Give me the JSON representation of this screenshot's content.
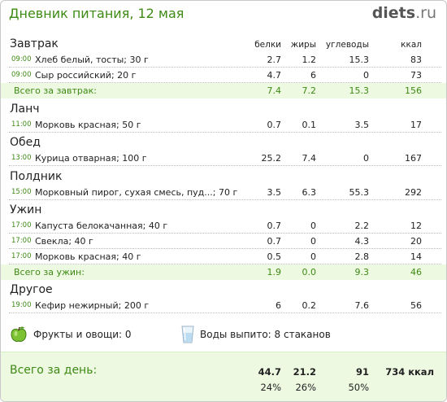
{
  "header": {
    "title": "Дневник питания, 12 мая",
    "logo_main": "diets",
    "logo_tld": ".ru"
  },
  "columns": [
    "белки",
    "жиры",
    "углеводы",
    "ккал"
  ],
  "sections": [
    {
      "title": "Завтрак",
      "rows": [
        {
          "time": "09:00",
          "food": "Хлеб белый, тосты; 30 г",
          "protein": "2.7",
          "fat": "1.2",
          "carbs": "15.3",
          "kcal": "83"
        },
        {
          "time": "09:00",
          "food": "Сыр российский; 20 г",
          "protein": "4.7",
          "fat": "6",
          "carbs": "0",
          "kcal": "73"
        }
      ],
      "subtotal": {
        "label": "Всего за завтрак:",
        "protein": "7.4",
        "fat": "7.2",
        "carbs": "15.3",
        "kcal": "156"
      }
    },
    {
      "title": "Ланч",
      "rows": [
        {
          "time": "11:00",
          "food": "Морковь красная; 50 г",
          "protein": "0.7",
          "fat": "0.1",
          "carbs": "3.5",
          "kcal": "17"
        }
      ]
    },
    {
      "title": "Обед",
      "rows": [
        {
          "time": "13:00",
          "food": "Курица отварная; 100 г",
          "protein": "25.2",
          "fat": "7.4",
          "carbs": "0",
          "kcal": "167"
        }
      ]
    },
    {
      "title": "Полдник",
      "rows": [
        {
          "time": "15:00",
          "food": "Морковный пирог, сухая смесь, пуд...; 70 г",
          "protein": "3.5",
          "fat": "6.3",
          "carbs": "55.3",
          "kcal": "292"
        }
      ]
    },
    {
      "title": "Ужин",
      "rows": [
        {
          "time": "17:00",
          "food": "Капуста белокачанная; 40 г",
          "protein": "0.7",
          "fat": "0",
          "carbs": "2.2",
          "kcal": "12"
        },
        {
          "time": "17:00",
          "food": "Свекла; 40 г",
          "protein": "0.7",
          "fat": "0",
          "carbs": "4.3",
          "kcal": "20"
        },
        {
          "time": "17:00",
          "food": "Морковь красная; 40 г",
          "protein": "0.5",
          "fat": "0",
          "carbs": "2.8",
          "kcal": "14"
        }
      ],
      "subtotal": {
        "label": "Всего за ужин:",
        "protein": "1.9",
        "fat": "0.0",
        "carbs": "9.3",
        "kcal": "46"
      }
    },
    {
      "title": "Другое",
      "rows": [
        {
          "time": "19:00",
          "food": "Кефир нежирный; 200 г",
          "protein": "6",
          "fat": "0.2",
          "carbs": "7.6",
          "kcal": "56"
        }
      ]
    }
  ],
  "extras": {
    "fruits_label": "Фрукты и овощи: 0",
    "water_label": "Воды выпито: 8 стаканов",
    "apple_icon": "apple-icon",
    "glass_icon": "water-glass-icon"
  },
  "daily_total": {
    "label": "Всего за день:",
    "protein": "44.7",
    "fat": "21.2",
    "carbs": "91",
    "kcal": "734 ккал",
    "protein_pct": "24%",
    "fat_pct": "26%",
    "carbs_pct": "50%"
  },
  "colors": {
    "accent_green": "#3d8a14",
    "subtotal_bg": "#eef9e2",
    "logo_gray": "#555555"
  }
}
